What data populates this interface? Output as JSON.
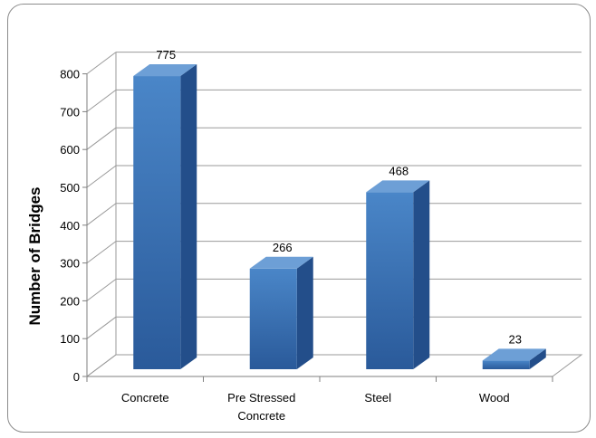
{
  "chart_data": {
    "type": "bar",
    "title": "",
    "xlabel": "",
    "ylabel": "Number of Bridges",
    "categories": [
      "Concrete",
      "Pre Stressed Concrete",
      "Steel",
      "Wood"
    ],
    "category_lines": [
      [
        "Concrete"
      ],
      [
        "Pre Stressed",
        "Concrete"
      ],
      [
        "Steel"
      ],
      [
        "Wood"
      ]
    ],
    "values": [
      775,
      266,
      468,
      23
    ],
    "ylim": [
      0,
      800
    ],
    "yticks": [
      0,
      100,
      200,
      300,
      400,
      500,
      600,
      700,
      800
    ],
    "grid": true,
    "legend": "none",
    "style": "3d-column",
    "colors": {
      "bar_front_top": "#4a86c8",
      "bar_front_bottom": "#2a5a9a",
      "bar_side": "#234e8a",
      "bar_top": "#6d9fd6",
      "grid": "#9a9a9a",
      "axis": "#7f7f7f"
    }
  }
}
